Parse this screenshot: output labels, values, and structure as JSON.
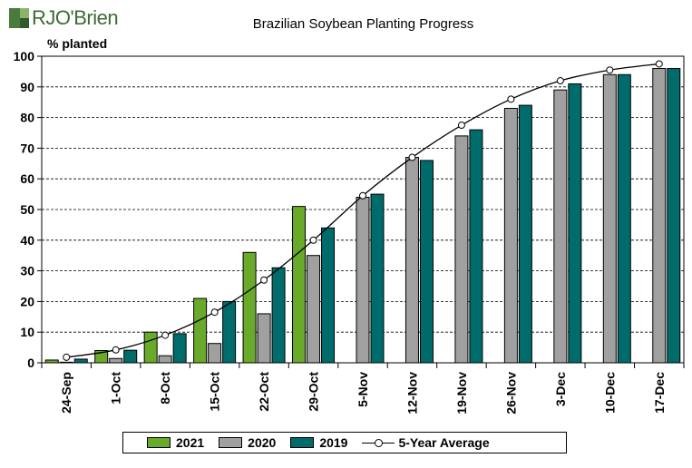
{
  "logo": {
    "text": "RJO'Brien"
  },
  "chart_data": {
    "type": "bar",
    "title": "Brazilian Soybean Planting Progress",
    "ylabel": "% planted",
    "xlabel": "",
    "ylim": [
      0,
      100
    ],
    "yticks": [
      0,
      10,
      20,
      30,
      40,
      50,
      60,
      70,
      80,
      90,
      100
    ],
    "categories": [
      "24-Sep",
      "1-Oct",
      "8-Oct",
      "15-Oct",
      "22-Oct",
      "29-Oct",
      "5-Nov",
      "12-Nov",
      "19-Nov",
      "26-Nov",
      "3-Dec",
      "10-Dec",
      "17-Dec"
    ],
    "series": [
      {
        "name": "2021",
        "type": "bar",
        "color": "#6aaa2a",
        "values": [
          0.9,
          4,
          10,
          21,
          36,
          51,
          null,
          null,
          null,
          null,
          null,
          null,
          null
        ]
      },
      {
        "name": "2020",
        "type": "bar",
        "color": "#a0a0a0",
        "values": [
          0.2,
          1.4,
          2.3,
          6.3,
          16,
          35,
          54,
          67,
          74,
          83,
          89,
          94,
          96
        ]
      },
      {
        "name": "2019",
        "type": "bar",
        "color": "#006b6b",
        "values": [
          1.2,
          4.1,
          9.5,
          20,
          31,
          44,
          55,
          66,
          76,
          84,
          91,
          94,
          96
        ]
      },
      {
        "name": "5-Year Average",
        "type": "line",
        "color": "#000000",
        "values": [
          1.8,
          4.2,
          9,
          16.5,
          27,
          40,
          54.5,
          67,
          77.5,
          86,
          92,
          95.5,
          97.5
        ]
      }
    ],
    "grid": true,
    "legend": "bottom"
  }
}
